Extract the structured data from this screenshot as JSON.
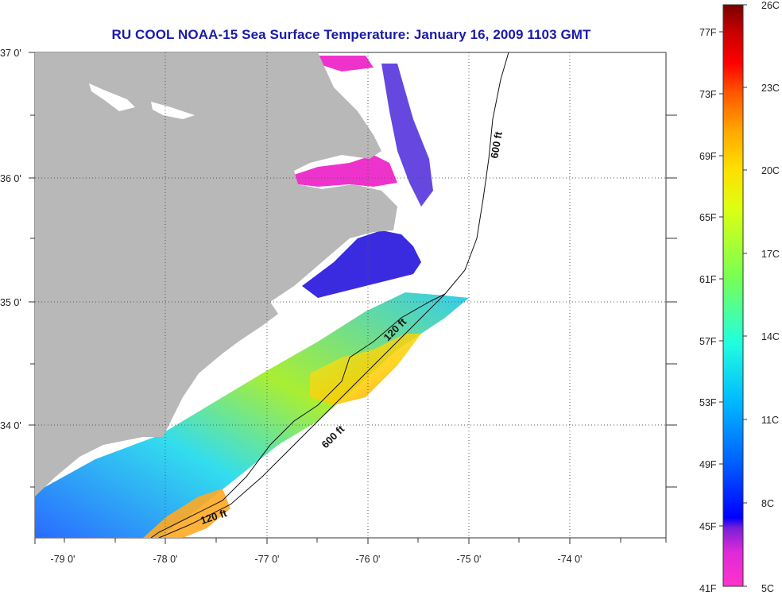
{
  "title": "RU COOL  NOAA-15  Sea Surface Temperature:  January 16, 2009 1103 GMT",
  "x_ticks": [
    "-79 0'",
    "-78 0'",
    "-77 0'",
    "-76 0'",
    "-75 0'",
    "-74 0'"
  ],
  "y_ticks": [
    "37 0'",
    "36 0'",
    "35 0'",
    "34 0'"
  ],
  "contours": [
    {
      "label": "600 ft"
    },
    {
      "label": "600 ft"
    },
    {
      "label": "120 ft"
    },
    {
      "label": "120 ft"
    }
  ],
  "colorbar": {
    "fahrenheit": [
      "77F",
      "73F",
      "69F",
      "65F",
      "61F",
      "57F",
      "53F",
      "49F",
      "45F",
      "41F"
    ],
    "celsius": [
      "26C",
      "23C",
      "20C",
      "17C",
      "14C",
      "11C",
      "8C",
      "5C"
    ],
    "colors": [
      "#ff33cc",
      "#cc22dd",
      "#7a1fd6",
      "#0000ff",
      "#0066ff",
      "#00ccff",
      "#33ffcc",
      "#99ff33",
      "#ffff00",
      "#ffaa00",
      "#ff5500",
      "#ff0000",
      "#cc0000",
      "#7a0000"
    ]
  },
  "colors": {
    "land": "#b8b8b8",
    "title": "#1a1aa8",
    "grid": "#555555"
  }
}
